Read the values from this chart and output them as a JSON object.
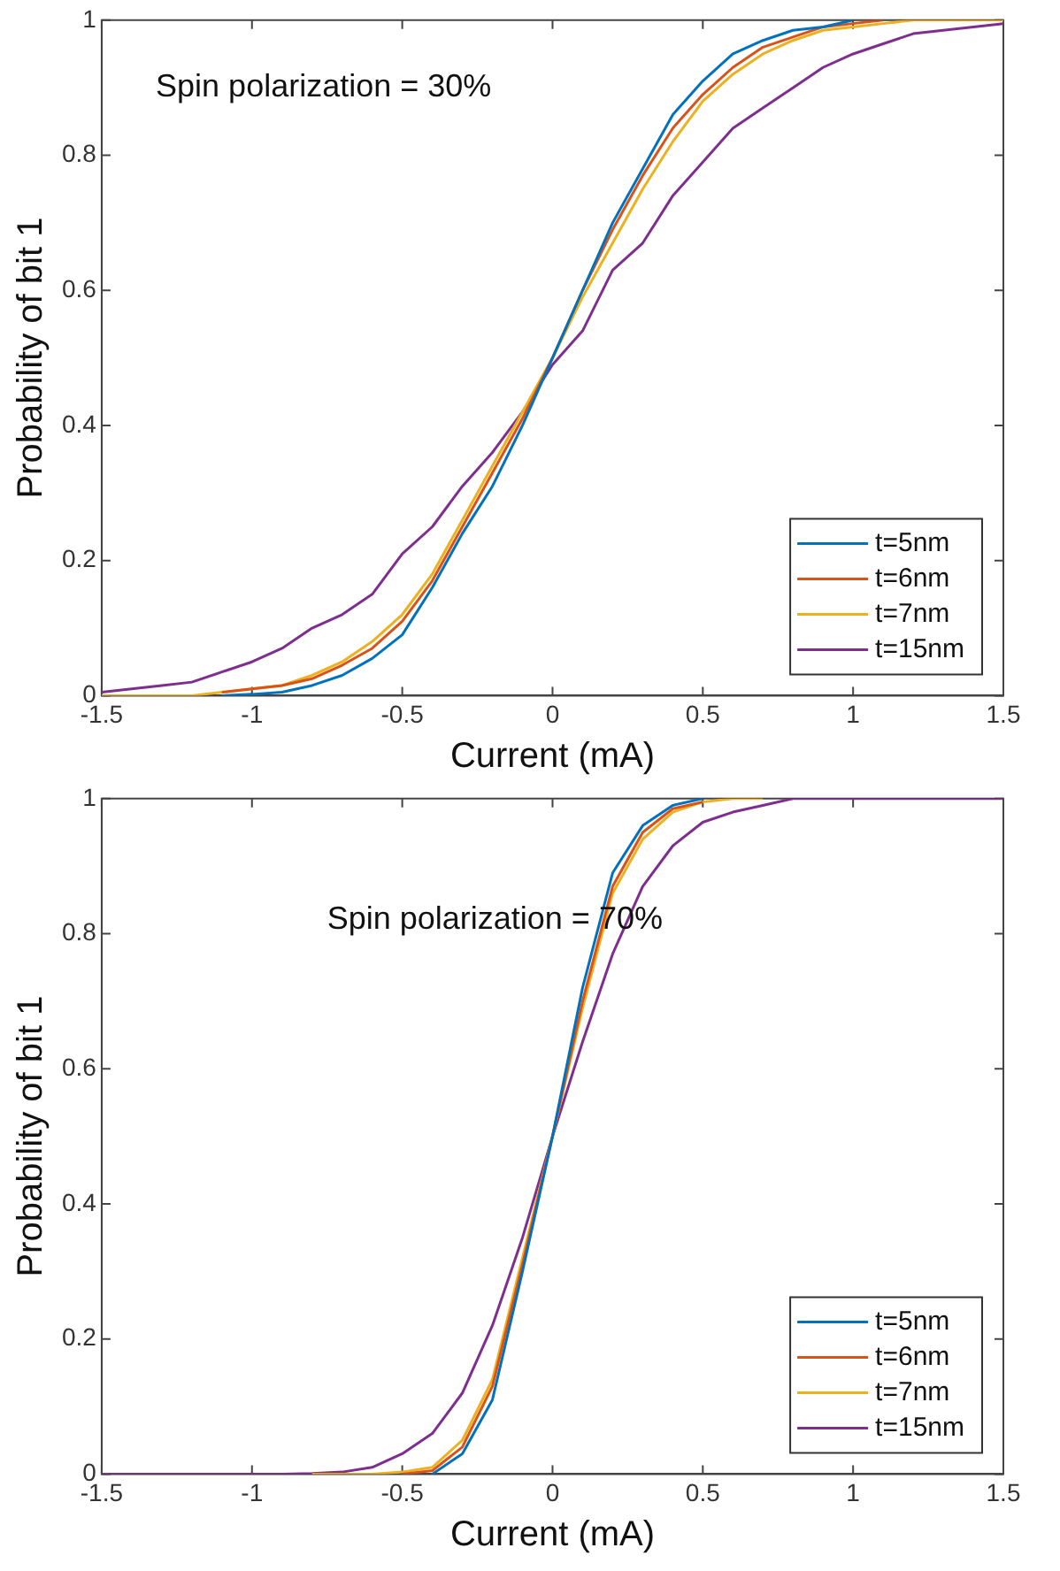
{
  "chart_data": [
    {
      "type": "line",
      "xlabel": "Current (mA)",
      "ylabel": "Probability of bit 1",
      "annotations": [
        "Spin polarization = 30%"
      ],
      "x": [
        -1.5,
        -1.4,
        -1.3,
        -1.2,
        -1.1,
        -1.0,
        -0.9,
        -0.8,
        -0.7,
        -0.6,
        -0.5,
        -0.4,
        -0.3,
        -0.2,
        -0.1,
        0,
        0.1,
        0.2,
        0.3,
        0.4,
        0.5,
        0.6,
        0.7,
        0.8,
        0.9,
        1.0,
        1.1,
        1.2,
        1.3,
        1.4,
        1.5
      ],
      "series": [
        {
          "name": "t=5nm",
          "color": "#0072bd",
          "values": [
            null,
            null,
            null,
            null,
            0,
            0.002,
            0.005,
            0.015,
            0.03,
            0.055,
            0.09,
            0.16,
            0.24,
            0.31,
            0.4,
            0.5,
            0.6,
            0.7,
            0.78,
            0.86,
            0.91,
            0.95,
            0.97,
            0.985,
            0.99,
            1,
            null,
            null,
            null,
            null,
            null
          ]
        },
        {
          "name": "t=6nm",
          "color": "#d95319",
          "values": [
            null,
            null,
            null,
            null,
            0.005,
            0.01,
            0.015,
            0.025,
            0.045,
            0.07,
            0.11,
            0.17,
            0.25,
            0.33,
            0.41,
            0.5,
            0.6,
            0.69,
            0.77,
            0.84,
            0.89,
            0.93,
            0.96,
            0.975,
            0.99,
            0.995,
            1,
            null,
            null,
            null,
            null
          ]
        },
        {
          "name": "t=7nm",
          "color": "#edb120",
          "values": [
            0,
            0,
            0,
            0,
            0.005,
            0.01,
            0.015,
            0.03,
            0.05,
            0.08,
            0.12,
            0.18,
            0.26,
            0.34,
            0.42,
            0.5,
            0.59,
            0.67,
            0.75,
            0.82,
            0.88,
            0.92,
            0.95,
            0.97,
            0.985,
            0.99,
            0.995,
            1,
            1,
            1,
            1
          ]
        },
        {
          "name": "t=15nm",
          "color": "#7e2f8e",
          "values": [
            0.005,
            0.01,
            0.015,
            0.02,
            0.035,
            0.05,
            0.07,
            0.1,
            0.12,
            0.15,
            0.21,
            0.25,
            0.31,
            0.36,
            0.42,
            0.49,
            0.54,
            0.63,
            0.67,
            0.74,
            0.79,
            0.84,
            0.87,
            0.9,
            0.93,
            0.95,
            0.965,
            0.98,
            0.985,
            0.99,
            0.995
          ]
        }
      ],
      "xlim": [
        -1.5,
        1.5
      ],
      "xticks": [
        -1.5,
        -1,
        -0.5,
        0,
        0.5,
        1,
        1.5
      ],
      "ylim": [
        0,
        1
      ],
      "yticks": [
        0,
        0.2,
        0.4,
        0.6,
        0.8,
        1
      ],
      "legend": "bottom right",
      "marker": "none",
      "line_style": "solid"
    },
    {
      "type": "line",
      "xlabel": "Current (mA)",
      "ylabel": "Probability of bit 1",
      "annotations": [
        "Spin polarization = 70%"
      ],
      "x": [
        -1.5,
        -1.4,
        -1.3,
        -1.2,
        -1.1,
        -1.0,
        -0.9,
        -0.8,
        -0.7,
        -0.6,
        -0.5,
        -0.4,
        -0.3,
        -0.2,
        -0.1,
        0,
        0.1,
        0.2,
        0.3,
        0.4,
        0.5,
        0.6,
        0.7,
        0.8,
        0.9,
        1.0,
        1.1,
        1.2,
        1.3,
        1.4,
        1.5
      ],
      "series": [
        {
          "name": "t=5nm",
          "color": "#0072bd",
          "values": [
            null,
            null,
            null,
            null,
            null,
            null,
            null,
            null,
            null,
            null,
            null,
            0,
            0.03,
            0.11,
            0.3,
            0.5,
            0.72,
            0.89,
            0.96,
            0.99,
            1,
            null,
            null,
            null,
            null,
            null,
            null,
            null,
            null,
            null,
            null
          ]
        },
        {
          "name": "t=6nm",
          "color": "#d95319",
          "values": [
            null,
            null,
            null,
            null,
            null,
            null,
            null,
            null,
            null,
            null,
            0,
            0.005,
            0.04,
            0.13,
            0.31,
            0.5,
            0.7,
            0.87,
            0.95,
            0.985,
            0.995,
            null,
            null,
            null,
            null,
            null,
            null,
            null,
            null,
            null,
            null
          ]
        },
        {
          "name": "t=7nm",
          "color": "#edb120",
          "values": [
            null,
            null,
            null,
            null,
            null,
            null,
            null,
            0,
            0,
            0,
            0.003,
            0.01,
            0.05,
            0.14,
            0.32,
            0.5,
            0.69,
            0.86,
            0.94,
            0.98,
            0.995,
            1,
            1,
            null,
            null,
            null,
            null,
            null,
            null,
            null,
            null
          ]
        },
        {
          "name": "t=15nm",
          "color": "#7e2f8e",
          "values": [
            0,
            0,
            0,
            0,
            0,
            0,
            0,
            0.001,
            0.003,
            0.01,
            0.03,
            0.06,
            0.12,
            0.22,
            0.35,
            0.5,
            0.64,
            0.77,
            0.87,
            0.93,
            0.965,
            0.98,
            0.99,
            1,
            1,
            1,
            1,
            1,
            1,
            1,
            1
          ]
        }
      ],
      "xlim": [
        -1.5,
        1.5
      ],
      "xticks": [
        -1.5,
        -1,
        -0.5,
        0,
        0.5,
        1,
        1.5
      ],
      "ylim": [
        0,
        1
      ],
      "yticks": [
        0,
        0.2,
        0.4,
        0.6,
        0.8,
        1
      ],
      "legend": "bottom right",
      "marker": "none",
      "line_style": "solid"
    }
  ]
}
